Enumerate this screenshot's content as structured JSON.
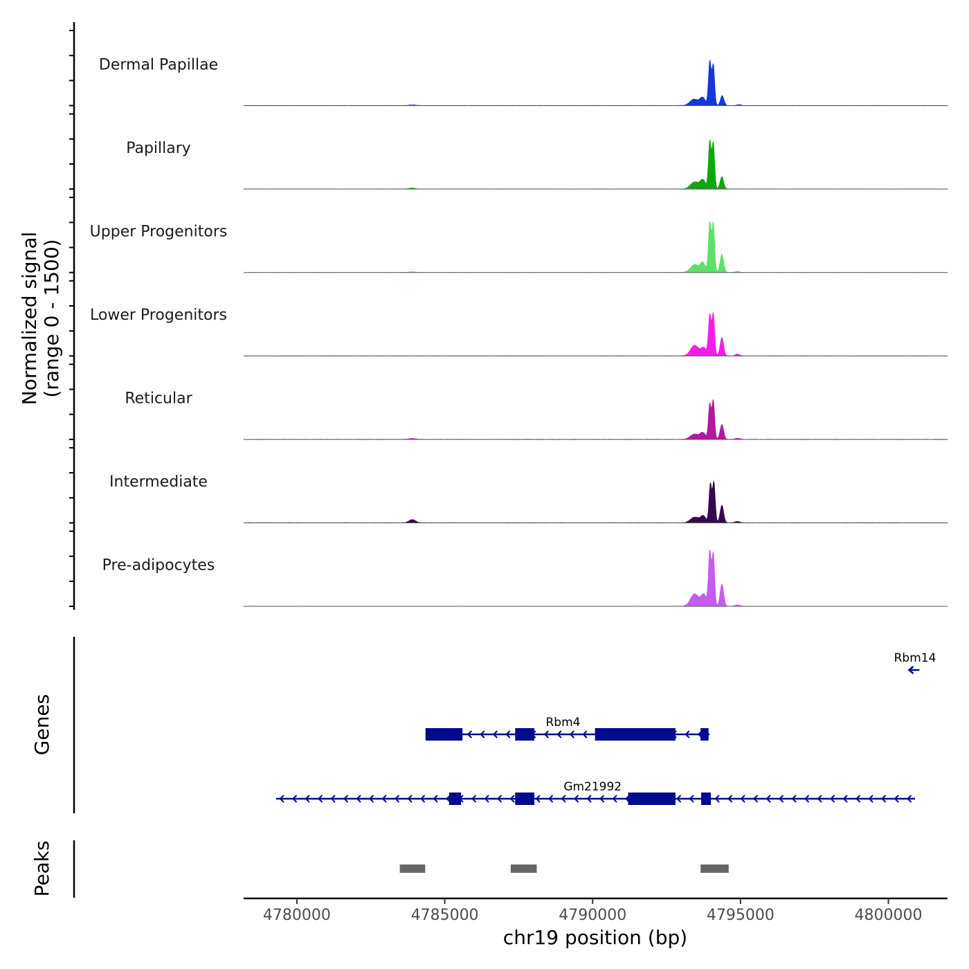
{
  "chart_data": {
    "type": "area",
    "title": "",
    "chromosome": "chr19",
    "xlabel": "chr19 position (bp)",
    "xlim": [
      4778200,
      4802000
    ],
    "x_ticks": [
      4780000,
      4785000,
      4790000,
      4795000,
      4800000
    ],
    "x_tick_labels": [
      "4780000",
      "4785000",
      "4790000",
      "4795000",
      "4800000"
    ],
    "coverage": {
      "ylabel_line1": "Normalized signal",
      "ylabel_line2": "(range 0 - 1500)",
      "ylim": [
        0,
        1500
      ],
      "series": [
        {
          "name": "Dermal Papillae",
          "color": "#1537d8",
          "peaks": [
            [
              4793430,
              140,
              180
            ],
            [
              4793720,
              90,
              220
            ],
            [
              4793960,
              45,
              1250
            ],
            [
              4794080,
              45,
              1150
            ],
            [
              4794380,
              60,
              280
            ],
            [
              4794950,
              70,
              25
            ],
            [
              4783900,
              110,
              18
            ]
          ]
        },
        {
          "name": "Papillary",
          "color": "#0fa80f",
          "peaks": [
            [
              4793450,
              140,
              200
            ],
            [
              4793730,
              90,
              250
            ],
            [
              4793960,
              45,
              1350
            ],
            [
              4794080,
              45,
              1300
            ],
            [
              4794370,
              60,
              350
            ],
            [
              4783900,
              110,
              25
            ]
          ]
        },
        {
          "name": "Upper Progenitors",
          "color": "#5ee16a",
          "peaks": [
            [
              4793450,
              140,
              220
            ],
            [
              4793730,
              90,
              260
            ],
            [
              4793960,
              45,
              1400
            ],
            [
              4794080,
              45,
              1380
            ],
            [
              4794370,
              60,
              520
            ],
            [
              4794900,
              80,
              30
            ],
            [
              4783900,
              110,
              20
            ]
          ]
        },
        {
          "name": "Lower Progenitors",
          "color": "#f31de8",
          "peaks": [
            [
              4793450,
              140,
              300
            ],
            [
              4793760,
              90,
              220
            ],
            [
              4793960,
              45,
              1150
            ],
            [
              4794080,
              45,
              1200
            ],
            [
              4794370,
              60,
              520
            ],
            [
              4794900,
              80,
              50
            ]
          ]
        },
        {
          "name": "Reticular",
          "color": "#b3189f",
          "peaks": [
            [
              4793450,
              140,
              150
            ],
            [
              4793730,
              90,
              180
            ],
            [
              4793960,
              45,
              1000
            ],
            [
              4794080,
              45,
              1100
            ],
            [
              4794370,
              60,
              420
            ],
            [
              4794900,
              80,
              30
            ],
            [
              4783900,
              110,
              25
            ]
          ]
        },
        {
          "name": "Intermediate",
          "color": "#34094f",
          "peaks": [
            [
              4793450,
              140,
              160
            ],
            [
              4793740,
              90,
              190
            ],
            [
              4793980,
              45,
              1100
            ],
            [
              4794100,
              45,
              1150
            ],
            [
              4794370,
              60,
              500
            ],
            [
              4794900,
              80,
              40
            ],
            [
              4783900,
              110,
              90
            ]
          ]
        },
        {
          "name": "Pre-adipocytes",
          "color": "#c45cf0",
          "peaks": [
            [
              4793450,
              140,
              350
            ],
            [
              4793760,
              90,
              320
            ],
            [
              4793960,
              45,
              1550
            ],
            [
              4794080,
              45,
              1500
            ],
            [
              4794370,
              60,
              630
            ],
            [
              4794900,
              80,
              40
            ]
          ]
        }
      ]
    },
    "genes": {
      "ylabel": "Genes",
      "color": "#000a8c",
      "items": [
        {
          "name": "Rbm14",
          "strand": "-",
          "row": 0,
          "start": 4800700,
          "end": 4801050,
          "exons": [],
          "label_at": 4800900
        },
        {
          "name": "Rbm4",
          "strand": "-",
          "row": 1,
          "start": 4784350,
          "end": 4793950,
          "exons": [
            [
              4784350,
              4785600
            ],
            [
              4787380,
              4788030
            ],
            [
              4790080,
              4792400
            ],
            [
              4792380,
              4792800
            ],
            [
              4793650,
              4793920
            ]
          ],
          "label_at": 4789000
        },
        {
          "name": "Gm21992",
          "strand": "-",
          "row": 2,
          "start": 4779300,
          "end": 4800900,
          "exons": [
            [
              4785150,
              4785550
            ],
            [
              4787380,
              4788030
            ],
            [
              4791200,
              4792400
            ],
            [
              4792380,
              4792800
            ],
            [
              4793670,
              4794000
            ]
          ],
          "label_at": 4790000
        }
      ]
    },
    "peaks": {
      "ylabel": "Peaks",
      "color": "#666666",
      "regions": [
        [
          4783480,
          4784340
        ],
        [
          4787230,
          4788110
        ],
        [
          4793650,
          4794600
        ]
      ]
    }
  }
}
